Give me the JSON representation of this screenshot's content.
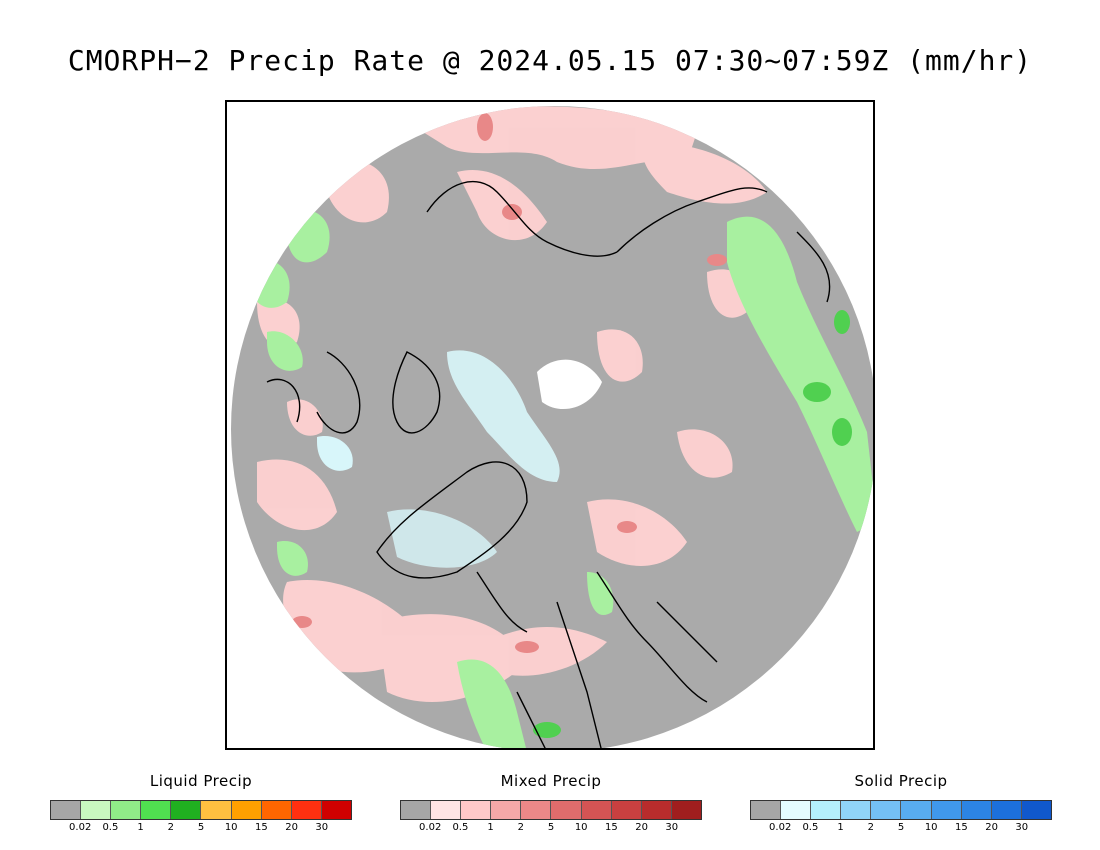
{
  "title": "CMORPH−2 Precip Rate @ 2024.05.15 07:30~07:59Z (mm/hr)",
  "map": {
    "background_color": "#aaaaaa",
    "categories_shown": [
      "liquid",
      "mixed",
      "solid"
    ]
  },
  "legends": [
    {
      "title": "Liquid Precip",
      "colors": [
        "#a6a6a6",
        "#c8f8c0",
        "#90ec88",
        "#50e050",
        "#20b020",
        "#ffc040",
        "#ffa000",
        "#ff6600",
        "#ff3010",
        "#d00000"
      ],
      "labels": [
        "0.02",
        "0.5",
        "1",
        "2",
        "5",
        "10",
        "15",
        "20",
        "30"
      ]
    },
    {
      "title": "Mixed Precip",
      "colors": [
        "#a6a6a6",
        "#ffe4e4",
        "#ffc8c8",
        "#f4a8a8",
        "#ec8888",
        "#e06c6c",
        "#d45454",
        "#c84040",
        "#b82c2c",
        "#a01e1e"
      ],
      "labels": [
        "0.02",
        "0.5",
        "1",
        "2",
        "5",
        "10",
        "15",
        "20",
        "30"
      ]
    },
    {
      "title": "Solid Precip",
      "colors": [
        "#a6a6a6",
        "#e4fcff",
        "#b4f0fc",
        "#90d4f8",
        "#74c0f4",
        "#58acf0",
        "#4098ec",
        "#2c84e4",
        "#1c70dc",
        "#1058cc"
      ],
      "labels": [
        "0.02",
        "0.5",
        "1",
        "2",
        "5",
        "10",
        "15",
        "20",
        "30"
      ]
    }
  ]
}
